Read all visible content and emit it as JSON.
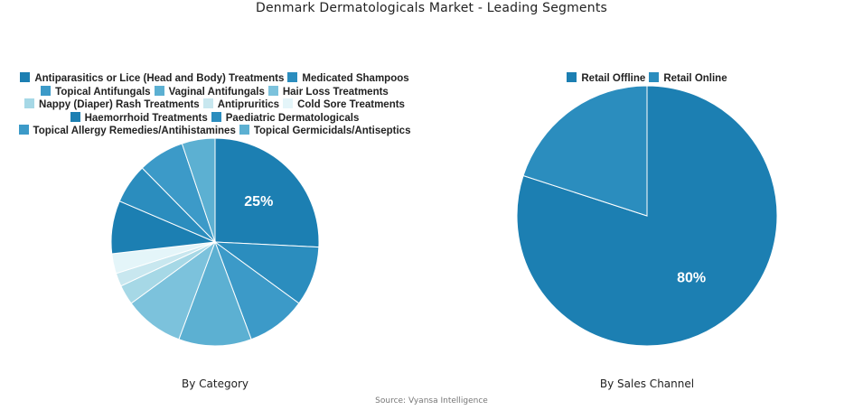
{
  "title": "Denmark Dermatologicals Market - Leading Segments",
  "source": "Source: Vyansa Intelligence",
  "chart_data": [
    {
      "type": "pie",
      "subtitle": "By Category",
      "legend_rows": [
        [
          0,
          1
        ],
        [
          2,
          3,
          4
        ],
        [
          5,
          6,
          7
        ],
        [
          8,
          9
        ],
        [
          10,
          11
        ]
      ],
      "slices": [
        {
          "label": "Antiparasitics or Lice (Head and Body) Treatments",
          "value": 25,
          "color": "#1c7fb2",
          "show_label": "25%"
        },
        {
          "label": "Medicated Shampoos",
          "value": 9,
          "color": "#2b8dbe"
        },
        {
          "label": "Topical Antifungals",
          "value": 9,
          "color": "#3c9ac8"
        },
        {
          "label": "Vaginal Antifungals",
          "value": 11,
          "color": "#5cb0d2"
        },
        {
          "label": "Hair Loss Treatments",
          "value": 9,
          "color": "#7cc2dc"
        },
        {
          "label": "Nappy (Diaper) Rash Treatments",
          "value": 3,
          "color": "#a6d8e6"
        },
        {
          "label": "Antipruritics",
          "value": 2,
          "color": "#c8e7ef"
        },
        {
          "label": "Cold Sore Treatments",
          "value": 3,
          "color": "#e4f5f9"
        },
        {
          "label": "Haemorrhoid Treatments",
          "value": 8,
          "color": "#1c7fb2"
        },
        {
          "label": "Paediatric Dermatologicals",
          "value": 6,
          "color": "#2b8dbe"
        },
        {
          "label": "Topical Allergy Remedies/Antihistamines",
          "value": 7,
          "color": "#3c9ac8"
        },
        {
          "label": "Topical Germicidals/Antiseptics",
          "value": 5,
          "color": "#5cb0d2"
        }
      ]
    },
    {
      "type": "pie",
      "subtitle": "By Sales Channel",
      "legend_rows": [
        [
          0,
          1
        ]
      ],
      "slices": [
        {
          "label": "Retail Offline",
          "value": 80,
          "color": "#1c7fb2",
          "show_label": "80%"
        },
        {
          "label": "Retail Online",
          "value": 20,
          "color": "#2b8dbe"
        }
      ]
    }
  ]
}
